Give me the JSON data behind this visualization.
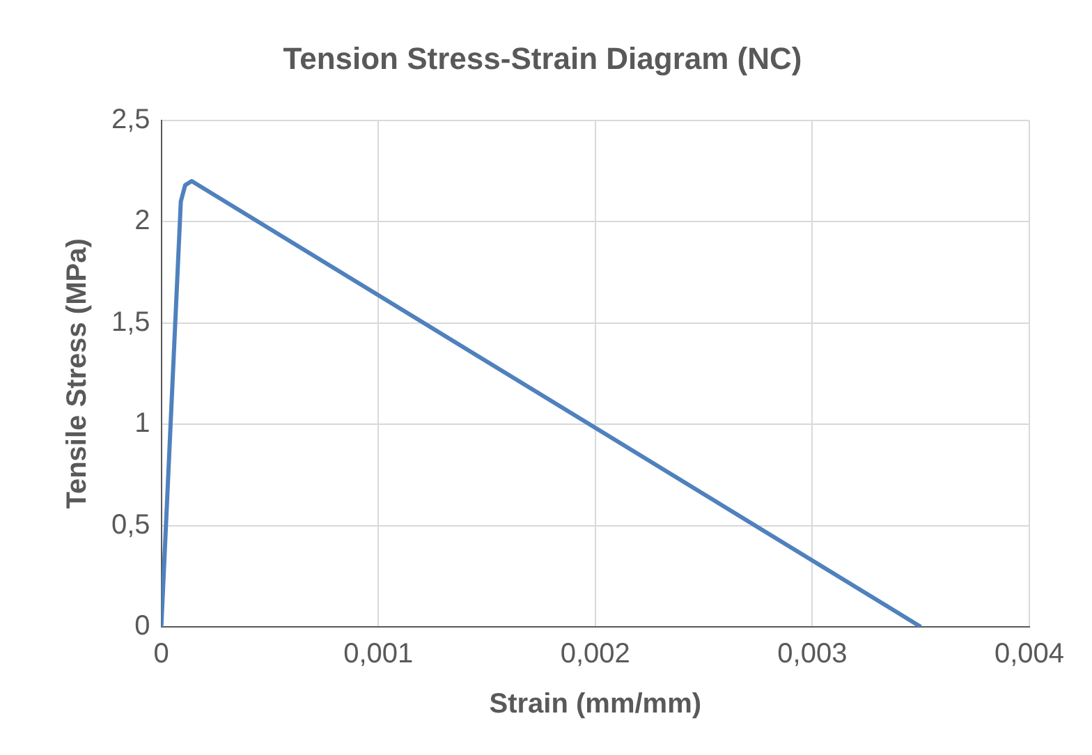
{
  "chart_data": {
    "type": "line",
    "title": "Tension Stress-Strain Diagram (NC)",
    "xlabel": "Strain (mm/mm)",
    "ylabel": "Tensile Stress (MPa)",
    "series": [
      {
        "color": "#4f81bd",
        "x": [
          0,
          9e-05,
          0.00011,
          0.00014,
          0.0035
        ],
        "values": [
          0,
          2.1,
          2.18,
          2.2,
          0
        ]
      }
    ],
    "xlim": [
      0,
      0.004
    ],
    "xticks": [
      0,
      {
        "value": 0.001,
        "label": "0,001"
      },
      {
        "value": 0.002,
        "label": "0,002"
      },
      {
        "value": 0.003,
        "label": "0,003"
      },
      {
        "value": 0.004,
        "label": "0,004"
      }
    ],
    "ylim": [
      0,
      2.5
    ],
    "yticks": [
      0,
      {
        "value": 0.5,
        "label": "0,5"
      },
      1,
      {
        "value": 1.5,
        "label": "1,5"
      },
      2,
      {
        "value": 2.5,
        "label": "2,5"
      }
    ],
    "grid": true,
    "legend": false,
    "marker": "none",
    "line_style": "solid"
  }
}
